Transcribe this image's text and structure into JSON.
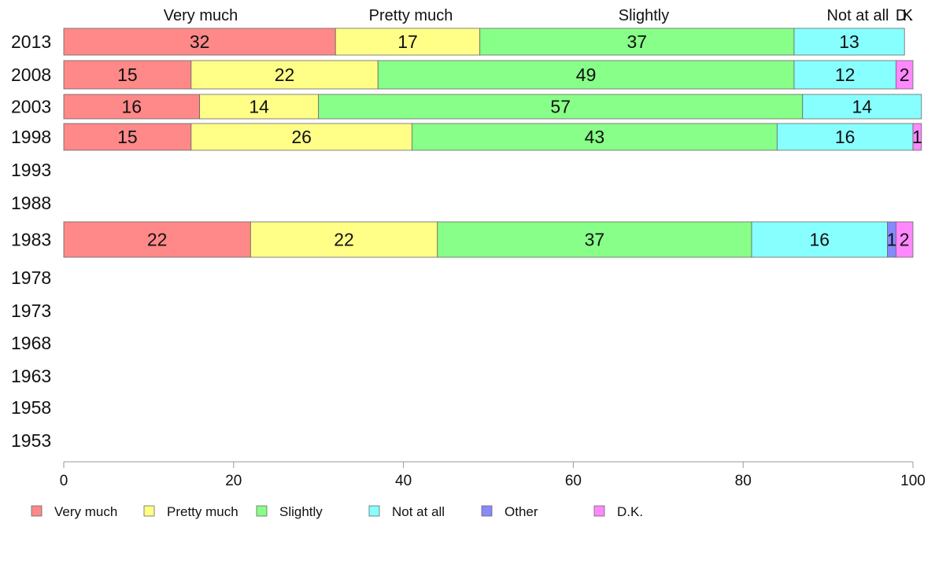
{
  "chart_data": {
    "type": "bar",
    "orientation": "horizontal",
    "stacked": true,
    "xlim": [
      0,
      100
    ],
    "xticks": [
      "0",
      "20",
      "40",
      "60",
      "80",
      "100"
    ],
    "categories": [
      "2013",
      "2008",
      "2003",
      "1998",
      "1993",
      "1988",
      "1983",
      "1978",
      "1973",
      "1968",
      "1963",
      "1958",
      "1953"
    ],
    "column_headers": [
      "Very much",
      "Pretty much",
      "Slightly",
      "Not at all",
      "D.K."
    ],
    "series": [
      {
        "name": "Very much",
        "color": "#ff8888",
        "values": [
          32,
          15,
          16,
          15,
          null,
          null,
          22,
          null,
          null,
          null,
          null,
          null,
          null
        ]
      },
      {
        "name": "Pretty much",
        "color": "#ffff88",
        "values": [
          17,
          22,
          14,
          26,
          null,
          null,
          22,
          null,
          null,
          null,
          null,
          null,
          null
        ]
      },
      {
        "name": "Slightly",
        "color": "#88ff88",
        "values": [
          37,
          49,
          57,
          43,
          null,
          null,
          37,
          null,
          null,
          null,
          null,
          null,
          null
        ]
      },
      {
        "name": "Not at all",
        "color": "#88ffff",
        "values": [
          13,
          12,
          14,
          16,
          null,
          null,
          16,
          null,
          null,
          null,
          null,
          null,
          null
        ]
      },
      {
        "name": "Other",
        "color": "#8888ff",
        "values": [
          0,
          0,
          0,
          0,
          null,
          null,
          1,
          null,
          null,
          null,
          null,
          null,
          null
        ]
      },
      {
        "name": "D.K.",
        "color": "#ff88ff",
        "values": [
          0,
          2,
          0,
          1,
          null,
          null,
          2,
          null,
          null,
          null,
          null,
          null,
          null
        ]
      }
    ],
    "grid": false,
    "legend_position": "bottom-left"
  }
}
